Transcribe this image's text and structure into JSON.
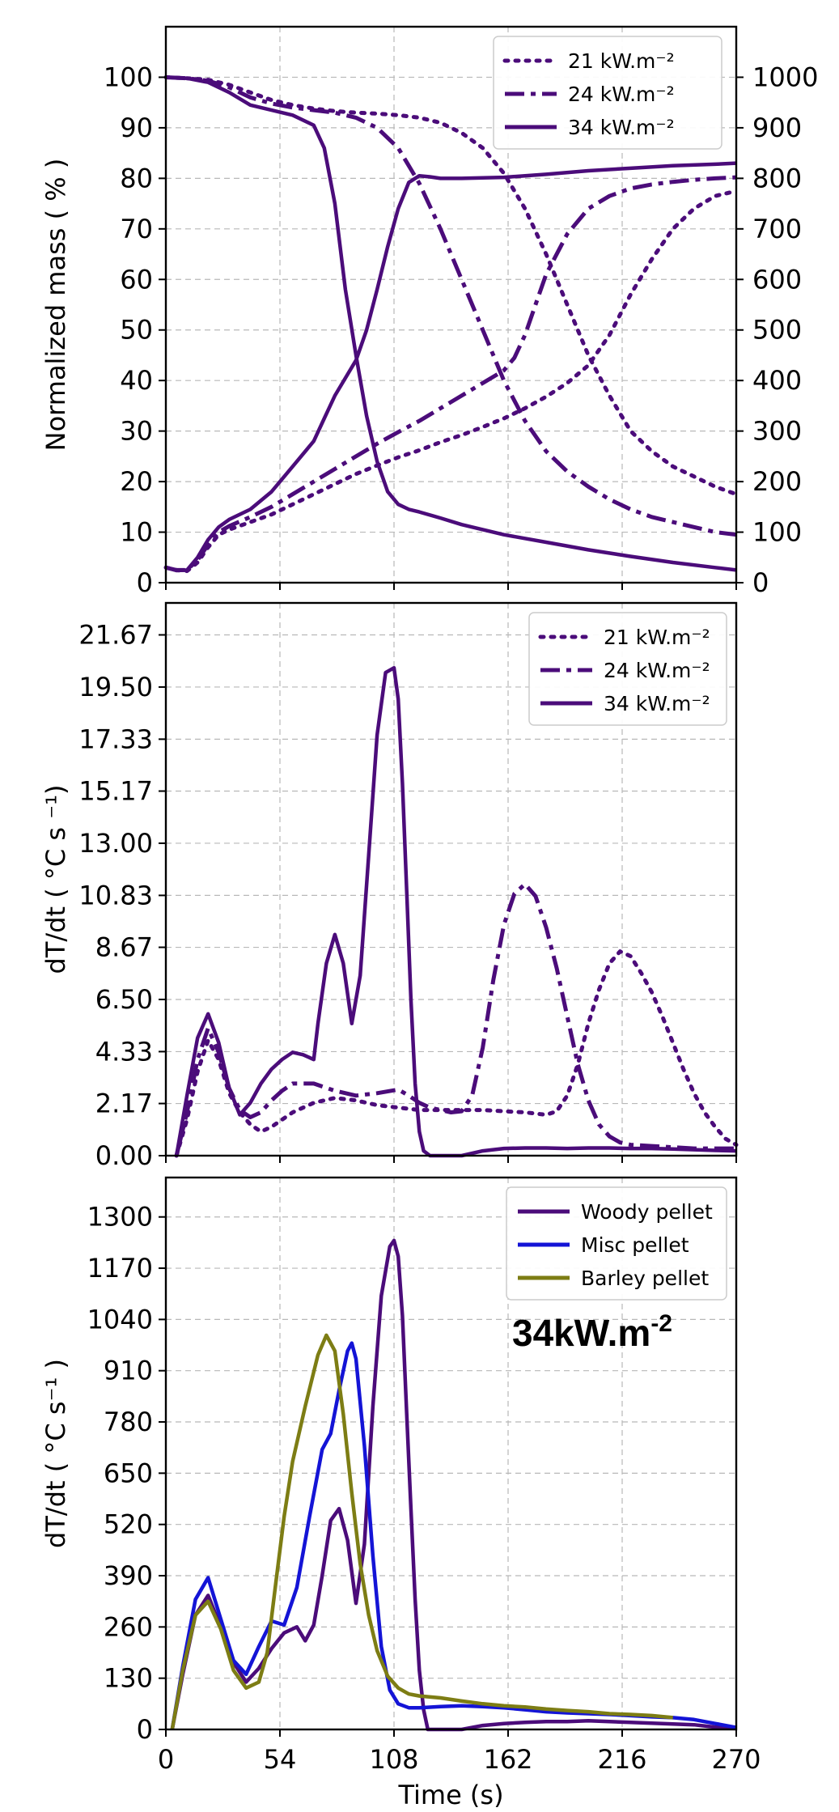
{
  "colors": {
    "woody": "#4b0c7a",
    "misc": "#1414d6",
    "barley": "#7d7d14",
    "text": "#000000",
    "grid": "#b8b8b8"
  },
  "chart_data": [
    {
      "type": "line",
      "xlim": [
        0,
        270
      ],
      "ylim": [
        0,
        110
      ],
      "y2lim": [
        0,
        1100
      ],
      "xticks": [
        0,
        54,
        108,
        162,
        216,
        270
      ],
      "yticks": [
        0,
        10,
        20,
        30,
        40,
        50,
        60,
        70,
        80,
        90,
        100
      ],
      "y2ticks": [
        0,
        100,
        200,
        300,
        400,
        500,
        600,
        700,
        800,
        900,
        1000
      ],
      "ylabel": "Normalized mass ( % )",
      "grid": true,
      "legend_position": "top-right",
      "legend": [
        "21 kW.m⁻²",
        "24 kW.m⁻²",
        "34 kW.m⁻²"
      ],
      "series": [
        {
          "name": "21 kW.m⁻²",
          "axis": "left",
          "style": "dotted",
          "x": [
            0,
            10,
            20,
            30,
            40,
            50,
            60,
            70,
            80,
            90,
            100,
            110,
            120,
            130,
            140,
            150,
            160,
            170,
            180,
            190,
            200,
            210,
            220,
            230,
            240,
            250,
            260,
            270
          ],
          "y": [
            100,
            99.8,
            99.5,
            98.5,
            97,
            95.5,
            94.5,
            93.8,
            93.3,
            93,
            92.8,
            92.5,
            92,
            91,
            89,
            86,
            81,
            74,
            65,
            55,
            45,
            37,
            30,
            26,
            23,
            21,
            19,
            17.5
          ]
        },
        {
          "name": "24 kW.m⁻²",
          "axis": "left",
          "style": "dashdot",
          "x": [
            0,
            10,
            20,
            30,
            40,
            50,
            60,
            70,
            80,
            90,
            100,
            110,
            120,
            130,
            140,
            150,
            160,
            170,
            180,
            190,
            200,
            210,
            220,
            230,
            240,
            250,
            260,
            270
          ],
          "y": [
            100,
            99.8,
            99.3,
            98,
            96,
            94.8,
            94,
            93.5,
            93,
            92,
            90,
            86,
            79,
            70,
            60,
            50,
            40,
            32,
            26,
            22,
            19,
            16.5,
            14.5,
            13,
            12,
            11,
            10,
            9.5
          ]
        },
        {
          "name": "34 kW.m⁻²",
          "axis": "left",
          "style": "solid",
          "x": [
            0,
            10,
            20,
            30,
            40,
            50,
            60,
            70,
            75,
            80,
            85,
            90,
            95,
            100,
            105,
            110,
            115,
            120,
            130,
            140,
            160,
            180,
            200,
            220,
            240,
            260,
            270
          ],
          "y": [
            100,
            99.8,
            99,
            97,
            94.5,
            93.5,
            92.5,
            90.5,
            86,
            75,
            58,
            45,
            33,
            24,
            18,
            15.5,
            14.5,
            14,
            12.8,
            11.5,
            9.5,
            8,
            6.5,
            5.2,
            4,
            3,
            2.5
          ]
        },
        {
          "name": "21 kW.m⁻²",
          "axis": "right",
          "style": "dotted",
          "x": [
            0,
            5,
            10,
            15,
            20,
            25,
            30,
            40,
            50,
            60,
            70,
            80,
            90,
            100,
            110,
            120,
            130,
            140,
            150,
            160,
            170,
            180,
            190,
            200,
            210,
            220,
            230,
            240,
            250,
            260,
            270
          ],
          "y": [
            30,
            25,
            23,
            40,
            70,
            95,
            105,
            120,
            135,
            155,
            175,
            195,
            215,
            232,
            248,
            262,
            278,
            292,
            308,
            325,
            345,
            368,
            395,
            430,
            490,
            570,
            640,
            700,
            740,
            765,
            775
          ]
        },
        {
          "name": "24 kW.m⁻²",
          "axis": "right",
          "style": "dashdot",
          "x": [
            0,
            5,
            10,
            15,
            20,
            25,
            30,
            40,
            50,
            60,
            70,
            80,
            90,
            100,
            110,
            120,
            130,
            140,
            150,
            160,
            165,
            170,
            175,
            180,
            190,
            200,
            210,
            220,
            230,
            240,
            250,
            260,
            270
          ],
          "y": [
            30,
            25,
            25,
            45,
            75,
            100,
            112,
            130,
            150,
            175,
            200,
            225,
            250,
            275,
            298,
            320,
            345,
            370,
            395,
            420,
            445,
            490,
            550,
            610,
            690,
            740,
            765,
            780,
            788,
            793,
            797,
            800,
            802
          ]
        },
        {
          "name": "34 kW.m⁻²",
          "axis": "right",
          "style": "solid",
          "x": [
            0,
            5,
            10,
            15,
            20,
            25,
            30,
            40,
            50,
            60,
            70,
            75,
            80,
            85,
            90,
            95,
            100,
            105,
            110,
            115,
            120,
            125,
            130,
            140,
            160,
            180,
            200,
            220,
            240,
            260,
            270
          ],
          "y": [
            30,
            24,
            25,
            50,
            85,
            110,
            125,
            145,
            180,
            230,
            280,
            325,
            370,
            405,
            440,
            500,
            580,
            665,
            740,
            792,
            805,
            803,
            800,
            800,
            802,
            808,
            815,
            820,
            825,
            828,
            830
          ]
        }
      ]
    },
    {
      "type": "line",
      "xlim": [
        0,
        270
      ],
      "ylim": [
        0,
        23.0
      ],
      "xticks": [
        0,
        54,
        108,
        162,
        216,
        270
      ],
      "ytick_labels": [
        "0.00",
        "2.17",
        "4.33",
        "6.50",
        "8.67",
        "10.83",
        "13.00",
        "15.17",
        "17.33",
        "19.50",
        "21.67"
      ],
      "yticks": [
        0,
        2.17,
        4.33,
        6.5,
        8.67,
        10.83,
        13.0,
        15.17,
        17.33,
        19.5,
        21.67
      ],
      "ylabel": "dT/dt ( °C s ⁻¹)",
      "grid": true,
      "legend_position": "top-right",
      "legend": [
        "21 kW.m⁻²",
        "24 kW.m⁻²",
        "34 kW.m⁻²"
      ],
      "series": [
        {
          "name": "21 kW.m⁻²",
          "style": "dotted",
          "x": [
            5,
            10,
            15,
            20,
            25,
            30,
            35,
            40,
            45,
            50,
            60,
            70,
            80,
            90,
            100,
            110,
            120,
            130,
            140,
            150,
            160,
            170,
            180,
            185,
            190,
            195,
            200,
            205,
            210,
            215,
            220,
            225,
            230,
            235,
            240,
            245,
            250,
            255,
            260,
            265,
            270
          ],
          "y": [
            0,
            1.5,
            3.5,
            4.8,
            4.0,
            2.6,
            1.8,
            1.3,
            1.0,
            1.2,
            1.8,
            2.2,
            2.4,
            2.3,
            2.1,
            2.0,
            1.9,
            1.9,
            1.9,
            1.9,
            1.85,
            1.8,
            1.7,
            1.85,
            2.5,
            3.8,
            5.5,
            6.9,
            8.0,
            8.5,
            8.3,
            7.6,
            6.8,
            5.8,
            4.7,
            3.6,
            2.6,
            1.8,
            1.2,
            0.7,
            0.45
          ]
        },
        {
          "name": "24 kW.m⁻²",
          "style": "dashdot",
          "x": [
            5,
            10,
            15,
            20,
            25,
            30,
            35,
            40,
            45,
            50,
            55,
            60,
            70,
            80,
            90,
            100,
            110,
            115,
            120,
            125,
            130,
            135,
            140,
            145,
            150,
            155,
            160,
            165,
            170,
            175,
            180,
            185,
            190,
            195,
            200,
            205,
            210,
            215,
            220,
            230,
            240,
            250,
            260,
            270
          ],
          "y": [
            0,
            1.8,
            4.0,
            5.3,
            4.3,
            2.8,
            1.9,
            1.6,
            1.8,
            2.3,
            2.7,
            3.0,
            3.0,
            2.7,
            2.5,
            2.6,
            2.75,
            2.5,
            2.2,
            2.0,
            1.9,
            1.8,
            1.85,
            2.5,
            4.5,
            7.3,
            9.6,
            10.9,
            11.3,
            10.8,
            9.5,
            7.8,
            5.8,
            3.8,
            2.3,
            1.3,
            0.8,
            0.55,
            0.45,
            0.4,
            0.35,
            0.3,
            0.3,
            0.3
          ]
        },
        {
          "name": "34 kW.m⁻²",
          "style": "solid",
          "x": [
            5,
            10,
            15,
            20,
            25,
            30,
            35,
            40,
            45,
            50,
            55,
            60,
            65,
            70,
            72,
            76,
            80,
            84,
            88,
            92,
            96,
            100,
            104,
            108,
            110,
            112,
            114,
            116,
            118,
            120,
            122,
            125,
            140,
            150,
            160,
            170,
            180,
            190,
            200,
            210,
            220,
            230,
            240,
            250,
            260,
            270
          ],
          "y": [
            0,
            2.5,
            4.9,
            5.9,
            4.7,
            2.8,
            1.7,
            2.2,
            3.0,
            3.6,
            4.0,
            4.3,
            4.2,
            4.0,
            5.5,
            8.0,
            9.2,
            8.0,
            5.5,
            7.5,
            12.5,
            17.5,
            20.1,
            20.3,
            19.0,
            15.5,
            11.0,
            6.5,
            3.0,
            1.0,
            0.2,
            0,
            0,
            0.2,
            0.3,
            0.32,
            0.32,
            0.3,
            0.32,
            0.32,
            0.3,
            0.3,
            0.28,
            0.25,
            0.22,
            0.2
          ]
        }
      ]
    },
    {
      "type": "line",
      "xlim": [
        0,
        270
      ],
      "ylim": [
        0,
        1400
      ],
      "xticks": [
        0,
        54,
        108,
        162,
        216,
        270
      ],
      "yticks": [
        0,
        130,
        260,
        390,
        520,
        650,
        780,
        910,
        1040,
        1170,
        1300
      ],
      "xlabel": "Time (s)",
      "ylabel": "dT/dt ( °C s⁻¹ )",
      "grid": true,
      "legend_position": "top-right",
      "legend": [
        "Woody pellet",
        "Misc pellet",
        "Barley pellet"
      ],
      "annotation": {
        "base": "34kW.m",
        "superscript": "-2"
      },
      "series": [
        {
          "name": "Woody pellet",
          "style": "solid",
          "color_key": "woody",
          "x": [
            3,
            8,
            14,
            20,
            26,
            32,
            38,
            44,
            50,
            56,
            62,
            66,
            70,
            74,
            78,
            82,
            86,
            90,
            94,
            98,
            102,
            106,
            108,
            110,
            112,
            114,
            116,
            118,
            120,
            122,
            124,
            130,
            140,
            150,
            160,
            170,
            180,
            190,
            200,
            210,
            220,
            230,
            240,
            250,
            260,
            270
          ],
          "y": [
            0,
            140,
            290,
            340,
            260,
            170,
            120,
            155,
            205,
            245,
            260,
            225,
            265,
            390,
            530,
            560,
            480,
            320,
            470,
            820,
            1100,
            1225,
            1240,
            1200,
            1050,
            800,
            560,
            330,
            150,
            50,
            0,
            0,
            0,
            10,
            15,
            18,
            20,
            20,
            22,
            20,
            18,
            16,
            14,
            12,
            6,
            2
          ]
        },
        {
          "name": "Misc pellet",
          "style": "solid",
          "color_key": "misc",
          "x": [
            3,
            8,
            14,
            20,
            26,
            32,
            38,
            44,
            50,
            56,
            62,
            68,
            74,
            78,
            82,
            86,
            88,
            90,
            94,
            98,
            102,
            106,
            110,
            115,
            120,
            130,
            140,
            150,
            160,
            170,
            180,
            190,
            200,
            210,
            220,
            230,
            240,
            250,
            260,
            270
          ],
          "y": [
            0,
            160,
            330,
            385,
            280,
            175,
            140,
            210,
            275,
            265,
            360,
            540,
            710,
            750,
            860,
            960,
            980,
            940,
            720,
            440,
            210,
            100,
            65,
            55,
            55,
            58,
            60,
            58,
            55,
            50,
            45,
            42,
            40,
            38,
            35,
            32,
            30,
            25,
            15,
            5
          ]
        },
        {
          "name": "Barley pellet",
          "style": "solid",
          "color_key": "barley",
          "x": [
            3,
            8,
            14,
            20,
            26,
            32,
            38,
            44,
            48,
            52,
            56,
            60,
            66,
            72,
            76,
            80,
            84,
            88,
            92,
            96,
            100,
            105,
            110,
            115,
            120,
            130,
            140,
            150,
            160,
            170,
            180,
            190,
            200,
            210,
            220,
            230,
            240
          ],
          "y": [
            0,
            150,
            290,
            325,
            255,
            150,
            105,
            120,
            195,
            370,
            540,
            680,
            820,
            950,
            1000,
            960,
            800,
            600,
            420,
            290,
            200,
            135,
            105,
            90,
            85,
            80,
            72,
            65,
            60,
            57,
            52,
            48,
            45,
            40,
            38,
            35,
            30
          ]
        }
      ]
    }
  ]
}
